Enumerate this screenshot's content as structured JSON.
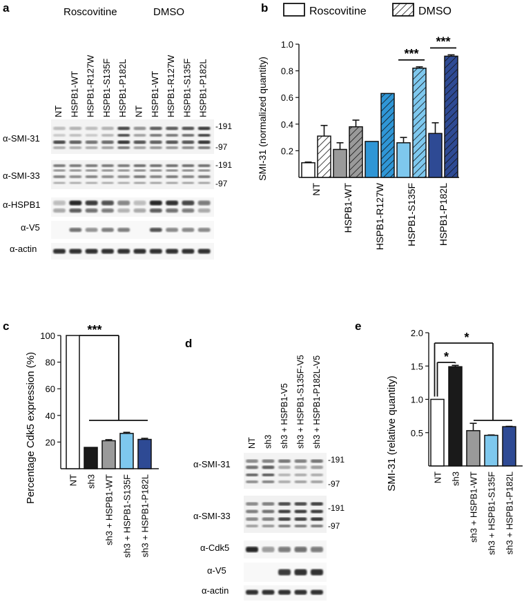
{
  "panels": {
    "a": {
      "letter": "a",
      "group_labels": [
        "Roscovitine",
        "DMSO"
      ],
      "lane_labels": [
        "NT",
        "HSPB1-WT",
        "HSPB1-R127W",
        "HSPB1-S135F",
        "HSPB1-P182L",
        "NT",
        "HSPB1-WT",
        "HSPB1-R127W",
        "HSPB1-S135F",
        "HSPB1-P182L"
      ],
      "blots": [
        "α-SMI-31",
        "α-SMI-33",
        "α-HSPB1",
        "α-V5",
        "α-actin"
      ],
      "mw": {
        "smi31_top": "-191",
        "smi31_bottom": "-97",
        "smi33_top": "-191",
        "smi33_bottom": "-97"
      }
    },
    "d": {
      "letter": "d",
      "lane_labels": [
        "NT",
        "sh3",
        "sh3 + HSPB1-V5",
        "sh3 + HSPB1-S135F-V5",
        "sh3 + HSPB1-P182L-V5"
      ],
      "blots": [
        "α-SMI-31",
        "α-SMI-33",
        "α-Cdk5",
        "α-V5",
        "α-actin"
      ],
      "mw": {
        "smi31_top": "-191",
        "smi31_bottom": "-97",
        "smi33_top": "-191",
        "smi33_bottom": "-97"
      }
    }
  },
  "colors": {
    "black": "#1a1a1a",
    "white": "#ffffff",
    "gray": "#9a9a9a",
    "blue": "#2f96d6",
    "light_blue": "#7ec8ee",
    "dark_blue": "#2e4a94"
  },
  "chart_data": [
    {
      "id": "b",
      "letter": "b",
      "type": "bar",
      "legend": [
        {
          "label": "Roscovitine",
          "pattern": "solid"
        },
        {
          "label": "DMSO",
          "pattern": "hatched"
        }
      ],
      "ylabel": "SMI-31 (normalized quantity)",
      "ylim": [
        0,
        1.0
      ],
      "yticks": [
        {
          "v": 0.2,
          "label": "0.2"
        },
        {
          "v": 0.4,
          "label": "0.4"
        },
        {
          "v": 0.6,
          "label": "0.6"
        },
        {
          "v": 0.8,
          "label": "0.8"
        },
        {
          "v": 1.0,
          "label": "1.0"
        }
      ],
      "categories": [
        "NT",
        "HSPB1-WT",
        "HSPB1-R127W",
        "HSPB1-S135F",
        "HSPB1-P182L"
      ],
      "category_colors": [
        "#ffffff",
        "#9a9a9a",
        "#2f96d6",
        "#7ec8ee",
        "#2e4a94"
      ],
      "series": [
        {
          "name": "Roscovitine",
          "values": [
            0.11,
            0.21,
            0.27,
            0.26,
            0.33
          ],
          "errors": [
            0.005,
            0.05,
            0.0,
            0.04,
            0.08
          ]
        },
        {
          "name": "DMSO",
          "values": [
            0.31,
            0.38,
            0.63,
            0.82,
            0.91
          ],
          "errors": [
            0.08,
            0.05,
            0.0,
            0.01,
            0.01
          ]
        }
      ],
      "significance": [
        {
          "category": 3,
          "label": "***"
        },
        {
          "category": 4,
          "label": "***"
        }
      ]
    },
    {
      "id": "c",
      "letter": "c",
      "type": "bar",
      "ylabel": "Percentage Cdk5 expression (%)",
      "ylim": [
        0,
        100
      ],
      "yticks": [
        {
          "v": 20,
          "label": "20"
        },
        {
          "v": 40,
          "label": "40"
        },
        {
          "v": 60,
          "label": "60"
        },
        {
          "v": 80,
          "label": "80"
        },
        {
          "v": 100,
          "label": "100"
        }
      ],
      "categories": [
        "NT",
        "sh3",
        "sh3 + HSPB1-WT",
        "sh3 + HSPB1-S135F",
        "sh3 + HSPB1-P182L"
      ],
      "category_colors": [
        "#ffffff",
        "#1a1a1a",
        "#9a9a9a",
        "#7ec8ee",
        "#2e4a94"
      ],
      "values": [
        100,
        16,
        21,
        26.5,
        22
      ],
      "errors": [
        0,
        0,
        0.8,
        0.8,
        0.8
      ],
      "significance": [
        {
          "label": "***"
        }
      ]
    },
    {
      "id": "e",
      "letter": "e",
      "type": "bar",
      "ylabel": "SMI-31 (relative quantity)",
      "ylim": [
        0,
        2.0
      ],
      "yticks": [
        {
          "v": 0.5,
          "label": "0.5"
        },
        {
          "v": 1.0,
          "label": "1.0"
        },
        {
          "v": 1.5,
          "label": "1.5"
        },
        {
          "v": 2.0,
          "label": "2.0"
        }
      ],
      "categories": [
        "NT",
        "sh3",
        "sh3 + HSPB1-WT",
        "sh3 + HSPB1-S135F",
        "sh3 + HSPB1-P182L"
      ],
      "category_colors": [
        "#ffffff",
        "#1a1a1a",
        "#9a9a9a",
        "#7ec8ee",
        "#2e4a94"
      ],
      "values": [
        1.0,
        1.49,
        0.53,
        0.46,
        0.59
      ],
      "errors": [
        0,
        0.02,
        0.11,
        0.005,
        0.005
      ],
      "significance": [
        {
          "label": "*"
        },
        {
          "label": "*"
        }
      ]
    }
  ]
}
